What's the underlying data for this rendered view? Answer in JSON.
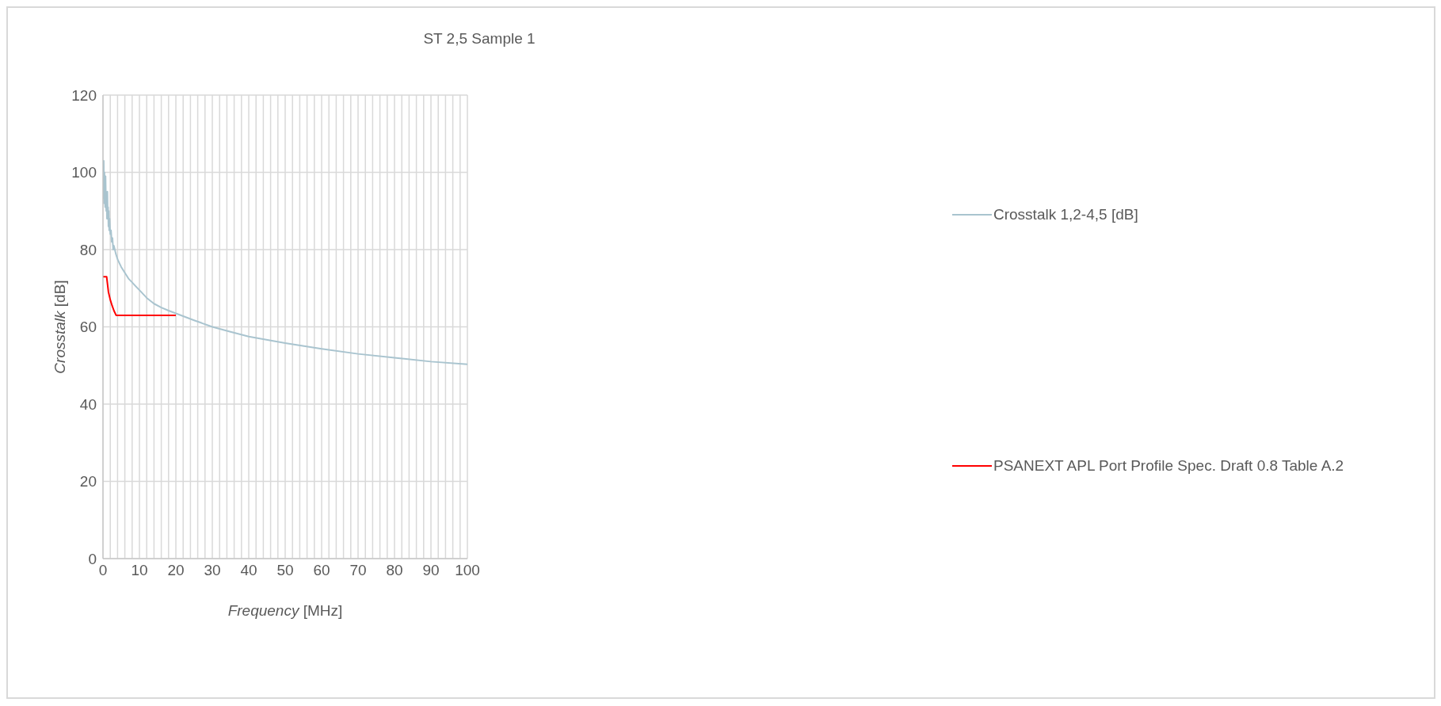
{
  "chart_data": {
    "type": "line",
    "title": "ST 2,5 Sample 1",
    "xlabel": "Frequency [MHz]",
    "ylabel": "Crosstalk [dB]",
    "xlim": [
      0,
      100
    ],
    "ylim": [
      0,
      120
    ],
    "xticks": [
      0,
      {
        "value": 2,
        "label": null
      },
      {
        "value": 4,
        "label": null
      },
      {
        "value": 6,
        "label": null
      },
      {
        "value": 8,
        "label": null
      },
      10,
      {
        "value": 12,
        "label": null
      },
      {
        "value": 14,
        "label": null
      },
      {
        "value": 16,
        "label": null
      },
      {
        "value": 18,
        "label": null
      },
      20,
      {
        "value": 22,
        "label": null
      },
      {
        "value": 24,
        "label": null
      },
      {
        "value": 26,
        "label": null
      },
      {
        "value": 28,
        "label": null
      },
      30,
      {
        "value": 32,
        "label": null
      },
      {
        "value": 34,
        "label": null
      },
      {
        "value": 36,
        "label": null
      },
      {
        "value": 38,
        "label": null
      },
      40,
      {
        "value": 42,
        "label": null
      },
      {
        "value": 44,
        "label": null
      },
      {
        "value": 46,
        "label": null
      },
      {
        "value": 48,
        "label": null
      },
      50,
      {
        "value": 52,
        "label": null
      },
      {
        "value": 54,
        "label": null
      },
      {
        "value": 56,
        "label": null
      },
      {
        "value": 58,
        "label": null
      },
      60,
      {
        "value": 62,
        "label": null
      },
      {
        "value": 64,
        "label": null
      },
      {
        "value": 66,
        "label": null
      },
      {
        "value": 68,
        "label": null
      },
      70,
      {
        "value": 72,
        "label": null
      },
      {
        "value": 74,
        "label": null
      },
      {
        "value": 76,
        "label": null
      },
      {
        "value": 78,
        "label": null
      },
      80,
      {
        "value": 82,
        "label": null
      },
      {
        "value": 84,
        "label": null
      },
      {
        "value": 86,
        "label": null
      },
      {
        "value": 88,
        "label": null
      },
      90,
      {
        "value": 92,
        "label": null
      },
      {
        "value": 94,
        "label": null
      },
      {
        "value": 96,
        "label": null
      },
      {
        "value": 98,
        "label": null
      },
      100
    ],
    "yticks": [
      0,
      20,
      40,
      60,
      80,
      100,
      120
    ],
    "grid": true,
    "legend": "right",
    "marker": "none",
    "line_style": "solid",
    "series": [
      {
        "name": "Crosstalk 1,2-4,5 [dB]",
        "color": "#a9c4cf",
        "x": [
          0.1,
          0.2,
          0.3,
          0.4,
          0.5,
          0.6,
          0.7,
          0.8,
          0.9,
          1.0,
          1.1,
          1.2,
          1.3,
          1.4,
          1.5,
          1.6,
          1.7,
          1.8,
          2.0,
          2.2,
          2.4,
          2.6,
          2.8,
          3.0,
          3.5,
          4,
          4.5,
          5,
          6,
          7,
          8,
          9,
          10,
          12,
          14,
          16,
          18,
          20,
          25,
          30,
          35,
          40,
          50,
          60,
          70,
          80,
          90,
          100
        ],
        "values": [
          93,
          103,
          92,
          100,
          95,
          91,
          99,
          93,
          90,
          94,
          88,
          95,
          89,
          91,
          86,
          90,
          85,
          88,
          84,
          85,
          82,
          83,
          80,
          81,
          79,
          77.5,
          76.5,
          75.5,
          74,
          72.5,
          71.5,
          70.5,
          69.5,
          67.5,
          66,
          65,
          64.2,
          63.5,
          61.7,
          60,
          58.7,
          57.5,
          55.8,
          54.3,
          53,
          52,
          51,
          50.3
        ]
      },
      {
        "name": "PSANEXT APL Port Profile Spec. Draft 0.8 Table A.2",
        "color": "#ff0000",
        "x": [
          0,
          1,
          1.5,
          2,
          2.5,
          3,
          3.6,
          20
        ],
        "values": [
          73,
          73,
          69,
          67,
          65.5,
          64.2,
          63,
          63
        ]
      }
    ]
  }
}
